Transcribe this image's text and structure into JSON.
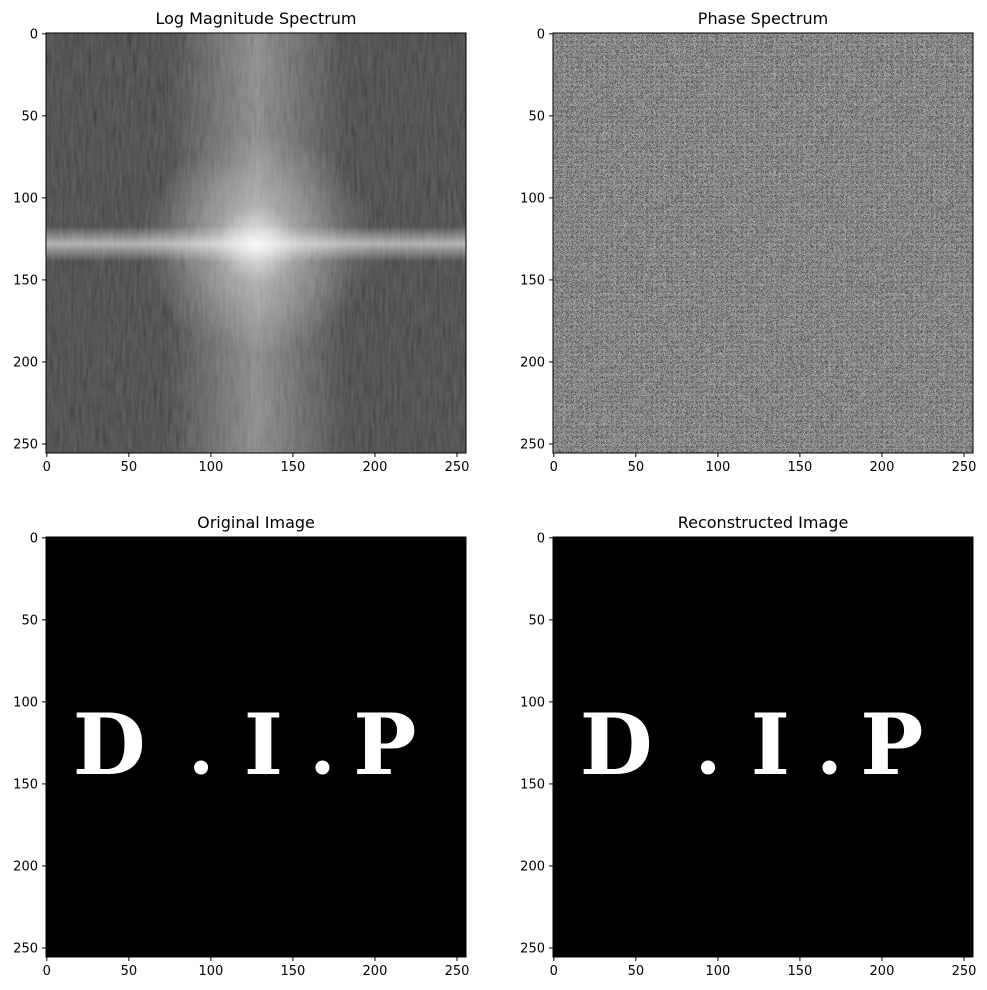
{
  "chart_data": [
    {
      "type": "heatmap",
      "id": "magnitude",
      "title": "Log Magnitude Spectrum",
      "colormap": "gray",
      "image_size": [
        256,
        256
      ],
      "xlim": [
        0,
        255
      ],
      "ylim": [
        255,
        0
      ],
      "xticks": [
        0,
        50,
        100,
        150,
        200,
        250
      ],
      "yticks": [
        0,
        50,
        100,
        150,
        200,
        250
      ],
      "features": {
        "center_bright_spot": [
          128,
          128
        ],
        "horizontal_band_row": 128,
        "vertical_band_col": 128
      }
    },
    {
      "type": "heatmap",
      "id": "phase",
      "title": "Phase Spectrum",
      "colormap": "gray",
      "image_size": [
        256,
        256
      ],
      "xlim": [
        0,
        255
      ],
      "ylim": [
        255,
        0
      ],
      "xticks": [
        0,
        50,
        100,
        150,
        200,
        250
      ],
      "yticks": [
        0,
        50,
        100,
        150,
        200,
        250
      ]
    },
    {
      "type": "heatmap",
      "id": "original",
      "title": "Original Image",
      "colormap": "gray",
      "image_size": [
        256,
        256
      ],
      "xlim": [
        0,
        255
      ],
      "ylim": [
        255,
        0
      ],
      "xticks": [
        0,
        50,
        100,
        150,
        200,
        250
      ],
      "yticks": [
        0,
        50,
        100,
        150,
        200,
        250
      ],
      "content_text": "D . I . P"
    },
    {
      "type": "heatmap",
      "id": "reconstructed",
      "title": "Reconstructed Image",
      "colormap": "gray",
      "image_size": [
        256,
        256
      ],
      "xlim": [
        0,
        255
      ],
      "ylim": [
        255,
        0
      ],
      "xticks": [
        0,
        50,
        100,
        150,
        200,
        250
      ],
      "yticks": [
        0,
        50,
        100,
        150,
        200,
        250
      ],
      "content_text": "D . I . P"
    }
  ]
}
